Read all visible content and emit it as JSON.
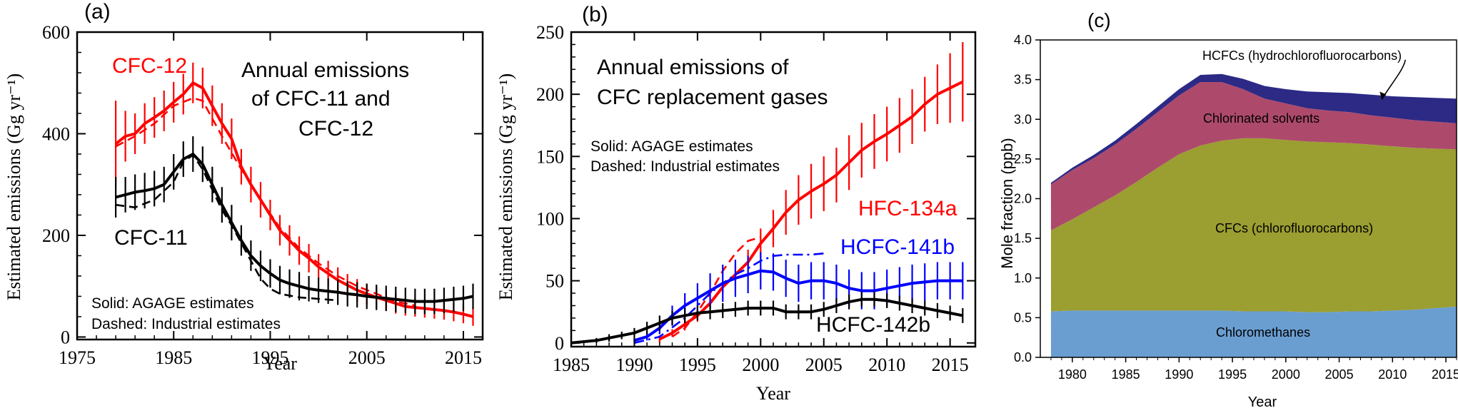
{
  "chart_data": [
    {
      "type": "line",
      "panel_label": "(a)",
      "title_lines": [
        "Annual emissions",
        "of CFC-11 and",
        "CFC-12"
      ],
      "xlabel": "Year",
      "ylabel": "Estimated emissions (Gg yr⁻¹)",
      "xlim": [
        1975,
        2017
      ],
      "ylim": [
        -5,
        600
      ],
      "x_ticks": [
        1975,
        1985,
        1995,
        2005,
        2015
      ],
      "y_ticks": [
        0,
        200,
        400,
        600
      ],
      "notes": [
        "Solid: AGAGE estimates",
        "Dashed: Industrial estimates"
      ],
      "series": [
        {
          "name": "CFC-12",
          "color": "#ff0000",
          "style": "solid",
          "label": "CFC-12",
          "x": [
            1979,
            1980,
            1981,
            1982,
            1983,
            1984,
            1985,
            1986,
            1987,
            1988,
            1989,
            1990,
            1991,
            1992,
            1993,
            1994,
            1995,
            1996,
            1997,
            1998,
            1999,
            2000,
            2001,
            2002,
            2003,
            2004,
            2005,
            2006,
            2007,
            2008,
            2009,
            2010,
            2011,
            2012,
            2013,
            2014,
            2015,
            2016
          ],
          "y": [
            380,
            395,
            400,
            420,
            432,
            445,
            462,
            478,
            500,
            490,
            455,
            420,
            390,
            335,
            300,
            270,
            240,
            210,
            190,
            170,
            155,
            138,
            125,
            112,
            102,
            92,
            85,
            78,
            72,
            66,
            60,
            58,
            56,
            54,
            52,
            49,
            45,
            40
          ],
          "err": [
            85,
            50,
            40,
            40,
            40,
            40,
            40,
            40,
            40,
            40,
            40,
            40,
            40,
            35,
            35,
            35,
            30,
            30,
            30,
            28,
            28,
            25,
            25,
            25,
            22,
            22,
            20,
            20,
            20,
            20,
            18,
            18,
            18,
            18,
            18,
            18,
            18,
            18
          ]
        },
        {
          "name": "CFC-12 industrial",
          "color": "#ff0000",
          "style": "dashed",
          "x": [
            1979,
            1981,
            1983,
            1985,
            1987,
            1988,
            1989,
            1990,
            1992,
            1994,
            1996,
            1998,
            2000,
            2002,
            2004,
            2006,
            2008,
            2010
          ],
          "y": [
            375,
            395,
            420,
            455,
            470,
            465,
            430,
            395,
            330,
            270,
            215,
            175,
            145,
            120,
            100,
            85,
            70,
            62
          ]
        },
        {
          "name": "CFC-11",
          "color": "#000000",
          "style": "solid",
          "label": "CFC-11",
          "x": [
            1979,
            1980,
            1981,
            1982,
            1983,
            1984,
            1985,
            1986,
            1987,
            1988,
            1989,
            1990,
            1991,
            1992,
            1993,
            1994,
            1995,
            1996,
            1997,
            1998,
            1999,
            2000,
            2001,
            2002,
            2003,
            2004,
            2005,
            2006,
            2007,
            2008,
            2009,
            2010,
            2011,
            2012,
            2013,
            2014,
            2015,
            2016
          ],
          "y": [
            275,
            280,
            285,
            288,
            292,
            300,
            325,
            350,
            360,
            340,
            300,
            260,
            225,
            190,
            160,
            140,
            125,
            112,
            105,
            100,
            95,
            92,
            90,
            88,
            85,
            83,
            80,
            78,
            76,
            74,
            72,
            70,
            70,
            70,
            72,
            74,
            76,
            80
          ],
          "err": [
            40,
            35,
            35,
            35,
            35,
            35,
            35,
            35,
            35,
            35,
            35,
            35,
            35,
            30,
            30,
            30,
            28,
            28,
            28,
            28,
            25,
            25,
            25,
            25,
            25,
            25,
            25,
            25,
            25,
            25,
            25,
            25,
            25,
            25,
            25,
            25,
            25,
            25
          ]
        },
        {
          "name": "CFC-11 industrial",
          "color": "#000000",
          "style": "dashed",
          "x": [
            1979,
            1981,
            1983,
            1985,
            1986,
            1987,
            1988,
            1989,
            1990,
            1991,
            1992,
            1993,
            1994,
            1995,
            1996,
            1998,
            2000,
            2002
          ],
          "y": [
            260,
            255,
            270,
            305,
            345,
            358,
            330,
            290,
            250,
            220,
            185,
            150,
            115,
            95,
            85,
            78,
            75,
            72
          ]
        }
      ]
    },
    {
      "type": "line",
      "panel_label": "(b)",
      "title_lines": [
        "Annual emissions of",
        "CFC replacement gases"
      ],
      "xlabel": "Year",
      "ylabel": "Estimated emissions (Gg yr⁻¹)",
      "xlim": [
        1985,
        2017
      ],
      "ylim": [
        -3,
        250
      ],
      "x_ticks": [
        1985,
        1990,
        1995,
        2000,
        2005,
        2010,
        2015
      ],
      "y_ticks": [
        0,
        50,
        100,
        150,
        200,
        250
      ],
      "notes": [
        "Solid: AGAGE estimates",
        "Dashed: Industrial estimates"
      ],
      "series": [
        {
          "name": "HFC-134a",
          "color": "#ff0000",
          "style": "solid",
          "label": "HFC-134a",
          "x": [
            1992,
            1993,
            1994,
            1995,
            1996,
            1997,
            1998,
            1999,
            2000,
            2001,
            2002,
            2003,
            2004,
            2005,
            2006,
            2007,
            2008,
            2009,
            2010,
            2011,
            2012,
            2013,
            2014,
            2015,
            2016
          ],
          "y": [
            3,
            8,
            15,
            22,
            32,
            45,
            55,
            65,
            80,
            92,
            105,
            115,
            122,
            128,
            135,
            145,
            155,
            162,
            168,
            175,
            182,
            192,
            200,
            205,
            210
          ],
          "err": [
            3,
            3,
            5,
            5,
            5,
            5,
            8,
            10,
            12,
            15,
            18,
            20,
            22,
            22,
            22,
            22,
            22,
            22,
            22,
            22,
            22,
            22,
            24,
            28,
            32
          ]
        },
        {
          "name": "HFC-134a industrial",
          "color": "#ff0000",
          "style": "dashed",
          "x": [
            1993,
            1994,
            1995,
            1996,
            1997,
            1998,
            1999,
            2000
          ],
          "y": [
            5,
            12,
            25,
            40,
            58,
            72,
            82,
            85
          ]
        },
        {
          "name": "HCFC-141b",
          "color": "#0000ff",
          "style": "solid",
          "label": "HCFC-141b",
          "x": [
            1990,
            1991,
            1992,
            1993,
            1994,
            1995,
            1996,
            1997,
            1998,
            1999,
            2000,
            2001,
            2002,
            2003,
            2004,
            2005,
            2006,
            2007,
            2008,
            2009,
            2010,
            2011,
            2012,
            2013,
            2014,
            2015,
            2016
          ],
          "y": [
            2,
            5,
            12,
            22,
            30,
            36,
            42,
            48,
            52,
            55,
            58,
            57,
            52,
            48,
            50,
            50,
            48,
            44,
            42,
            42,
            44,
            46,
            48,
            49,
            50,
            50,
            50
          ],
          "err": [
            2,
            3,
            5,
            8,
            10,
            12,
            14,
            15,
            15,
            15,
            15,
            15,
            15,
            15,
            15,
            15,
            15,
            15,
            15,
            15,
            15,
            15,
            15,
            15,
            15,
            15,
            15
          ]
        },
        {
          "name": "HCFC-141b industrial",
          "color": "#0000ff",
          "style": "dashdot",
          "x": [
            1990,
            1992,
            1994,
            1995,
            1996,
            1997,
            1998,
            1999,
            2000,
            2001,
            2002,
            2003,
            2004,
            2005
          ],
          "y": [
            0,
            5,
            20,
            30,
            40,
            48,
            55,
            60,
            66,
            70,
            71,
            71,
            71,
            72
          ]
        },
        {
          "name": "HCFC-142b",
          "color": "#000000",
          "style": "solid",
          "label": "HCFC-142b",
          "x": [
            1985,
            1986,
            1987,
            1988,
            1989,
            1990,
            1991,
            1992,
            1993,
            1994,
            1995,
            1996,
            1997,
            1998,
            1999,
            2000,
            2001,
            2002,
            2003,
            2004,
            2005,
            2006,
            2007,
            2008,
            2009,
            2010,
            2011,
            2012,
            2013,
            2014,
            2015,
            2016
          ],
          "y": [
            0,
            1,
            2,
            4,
            6,
            8,
            12,
            16,
            20,
            22,
            24,
            25,
            26,
            27,
            28,
            28,
            28,
            25,
            25,
            25,
            27,
            30,
            33,
            35,
            35,
            34,
            32,
            30,
            28,
            26,
            24,
            22
          ],
          "err": [
            1,
            1,
            2,
            3,
            3,
            4,
            5,
            6,
            6,
            6,
            6,
            6,
            6,
            6,
            6,
            6,
            6,
            6,
            6,
            6,
            6,
            6,
            6,
            6,
            6,
            6,
            6,
            6,
            6,
            6,
            6,
            6
          ]
        }
      ]
    },
    {
      "type": "area",
      "panel_label": "(c)",
      "xlabel": "Year",
      "ylabel": "Mole fraction (ppb)",
      "xlim": [
        1977,
        2016
      ],
      "ylim": [
        0,
        4.0
      ],
      "x_ticks": [
        1980,
        1985,
        1990,
        1995,
        2000,
        2005,
        2010,
        2015
      ],
      "y_ticks": [
        "0.0",
        "0.5",
        "1.0",
        "1.5",
        "2.0",
        "2.5",
        "3.0",
        "3.5",
        "4.0"
      ],
      "x": [
        1978,
        1980,
        1982,
        1984,
        1986,
        1988,
        1990,
        1992,
        1994,
        1996,
        1998,
        2000,
        2002,
        2004,
        2006,
        2008,
        2010,
        2012,
        2014,
        2016
      ],
      "series": [
        {
          "name": "Chloromethanes",
          "label": "Chloromethanes",
          "color": "#6a9ed1",
          "values": [
            0.58,
            0.59,
            0.59,
            0.59,
            0.59,
            0.59,
            0.59,
            0.59,
            0.59,
            0.58,
            0.58,
            0.58,
            0.57,
            0.57,
            0.58,
            0.58,
            0.59,
            0.6,
            0.62,
            0.64
          ]
        },
        {
          "name": "CFCs",
          "label": "CFCs (chlorofluorocarbons)",
          "color": "#9b9e31",
          "values": [
            1.02,
            1.15,
            1.3,
            1.45,
            1.62,
            1.8,
            1.97,
            2.08,
            2.14,
            2.18,
            2.18,
            2.16,
            2.15,
            2.14,
            2.12,
            2.1,
            2.07,
            2.04,
            2.01,
            1.98
          ]
        },
        {
          "name": "Chlorinated solvents",
          "label": "Chlorinated solvents",
          "color": "#ad4a6c",
          "values": [
            0.58,
            0.62,
            0.62,
            0.64,
            0.67,
            0.7,
            0.74,
            0.8,
            0.74,
            0.62,
            0.5,
            0.46,
            0.42,
            0.4,
            0.39,
            0.37,
            0.36,
            0.35,
            0.34,
            0.33
          ]
        },
        {
          "name": "HCFCs",
          "label": "HCFCs (hydrochlorofluorocarbons)",
          "color": "#2c2a85",
          "values": [
            0.02,
            0.03,
            0.04,
            0.05,
            0.06,
            0.07,
            0.08,
            0.09,
            0.1,
            0.13,
            0.16,
            0.18,
            0.21,
            0.23,
            0.24,
            0.26,
            0.27,
            0.29,
            0.3,
            0.31
          ]
        }
      ],
      "annotation": {
        "text": "HCFCs (hydrochlorofluorocarbons)",
        "arrow_to_year": 2009,
        "arrow_to_value": 3.25
      }
    }
  ]
}
